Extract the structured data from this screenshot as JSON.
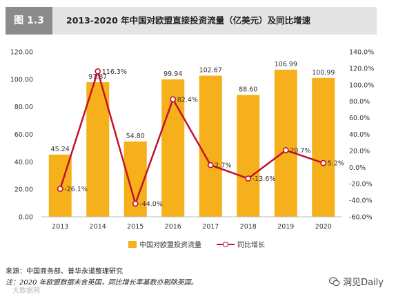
{
  "header": {
    "figure_label": "图 1.3",
    "title": "2013-2020 年中国对欧盟直接投资流量（亿美元）及同比增速"
  },
  "chart_data": {
    "type": "bar",
    "categories": [
      "2013",
      "2014",
      "2015",
      "2016",
      "2017",
      "2018",
      "2019",
      "2020"
    ],
    "series": [
      {
        "name": "中国对欧盟投资流量",
        "type": "bar",
        "axis": "left",
        "values": [
          45.24,
          97.87,
          54.8,
          99.94,
          102.67,
          88.6,
          106.99,
          100.99
        ],
        "labels": [
          "45.24",
          "97.87",
          "54.80",
          "99.94",
          "102.67",
          "88.60",
          "106.99",
          "100.99"
        ],
        "color": "#f5b01b"
      },
      {
        "name": "同比增长",
        "type": "line",
        "axis": "right",
        "values": [
          -26.1,
          116.3,
          -44.0,
          82.4,
          2.7,
          -13.6,
          20.7,
          5.2
        ],
        "labels": [
          "-26.1%",
          "116.3%",
          "-44.0%",
          "82.4%",
          "2.7%",
          "-13.6%",
          "20.7%",
          "5.2%"
        ],
        "color": "#c0112a"
      }
    ],
    "y_left": {
      "range": [
        0,
        120
      ],
      "ticks": [
        "0.00",
        "20.00",
        "40.00",
        "60.00",
        "80.00",
        "100.00",
        "120.00"
      ]
    },
    "y_right": {
      "range": [
        -60,
        140
      ],
      "ticks": [
        "-60.0%",
        "-40.0%",
        "-20.0%",
        "0.0%",
        "20.0%",
        "40.0%",
        "60.0%",
        "80.0%",
        "100.0%",
        "120.0%",
        "140.0%"
      ]
    },
    "grid": false,
    "legend_position": "bottom"
  },
  "legend": {
    "bar_label": "中国对欧盟投资流量",
    "line_label": "同比增长"
  },
  "footer": {
    "source": "来源：中国商务部、普华永道整理研究",
    "note": "注：2020 年欧盟数据未含英国，同比增长率基数亦剔除英国。"
  },
  "watermark": {
    "text": "洞见Daily",
    "faint_text": "大数据网"
  }
}
